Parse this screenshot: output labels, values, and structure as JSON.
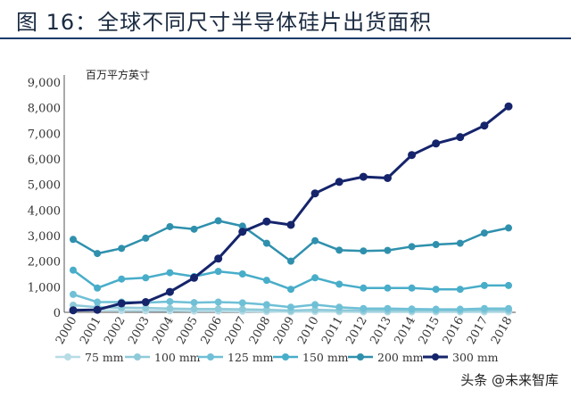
{
  "page": {
    "title": "图 16：全球不同尺寸半导体硅片出货面积",
    "watermark": "头条 @未来智库"
  },
  "chart_data": {
    "type": "line",
    "unit_label": "百万平方英寸",
    "categories": [
      "2000",
      "2001",
      "2002",
      "2003",
      "2004",
      "2005",
      "2006",
      "2007",
      "2008",
      "2009",
      "2010",
      "2011",
      "2012",
      "2013",
      "2014",
      "2015",
      "2016",
      "2017",
      "2018"
    ],
    "ylim": [
      0,
      9000
    ],
    "yticks": [
      "0",
      "1,000",
      "2,000",
      "3,000",
      "4,000",
      "5,000",
      "6,000",
      "7,000",
      "8,000",
      "9,000"
    ],
    "grid": false,
    "legend_position": "bottom",
    "series": [
      {
        "name": "75 mm",
        "color": "#b7dce6",
        "values": [
          120,
          80,
          70,
          60,
          60,
          50,
          50,
          40,
          30,
          20,
          30,
          20,
          15,
          15,
          15,
          15,
          15,
          15,
          15
        ]
      },
      {
        "name": "100 mm",
        "color": "#8fcad9",
        "values": [
          280,
          200,
          180,
          170,
          150,
          130,
          130,
          120,
          100,
          70,
          100,
          80,
          70,
          70,
          70,
          70,
          70,
          80,
          80
        ]
      },
      {
        "name": "125 mm",
        "color": "#6fc0d6",
        "values": [
          700,
          400,
          400,
          380,
          420,
          380,
          400,
          370,
          300,
          200,
          300,
          200,
          150,
          150,
          130,
          120,
          120,
          150,
          150
        ]
      },
      {
        "name": "150 mm",
        "color": "#48adc9",
        "values": [
          1650,
          950,
          1300,
          1350,
          1550,
          1400,
          1600,
          1500,
          1250,
          900,
          1350,
          1100,
          950,
          950,
          950,
          900,
          900,
          1050,
          1050
        ]
      },
      {
        "name": "200 mm",
        "color": "#2f90ad",
        "values": [
          2850,
          2300,
          2500,
          2900,
          3350,
          3250,
          3580,
          3370,
          2700,
          2000,
          2800,
          2430,
          2400,
          2420,
          2570,
          2650,
          2700,
          3100,
          3300
        ]
      },
      {
        "name": "300 mm",
        "color": "#15246b",
        "values": [
          80,
          100,
          350,
          400,
          800,
          1350,
          2100,
          3150,
          3550,
          3420,
          4650,
          5100,
          5300,
          5250,
          6150,
          6600,
          6850,
          7300,
          8050
        ]
      }
    ]
  }
}
